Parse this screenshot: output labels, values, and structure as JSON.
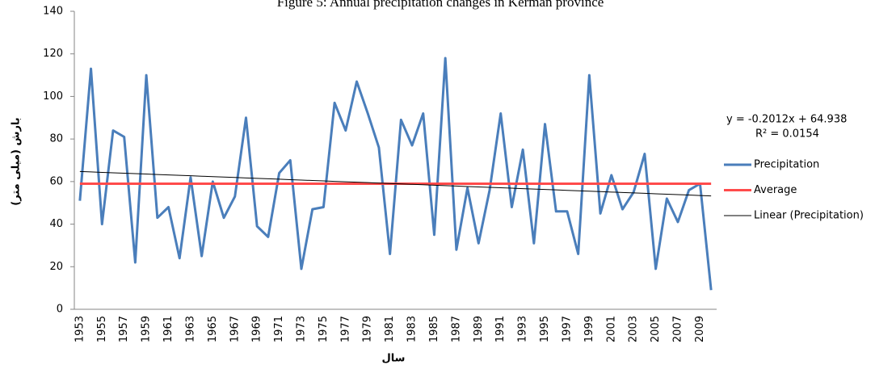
{
  "chart_data": {
    "type": "line",
    "title": "Figure 5: Annual precipitation changes in Kerman province",
    "x_label": "سال",
    "y_label": "بارش (میلی متر)",
    "annotations": [
      "y = -0.2012x + 64.938",
      "R² = 0.0154"
    ],
    "categories": [
      "1953",
      null,
      "1955",
      null,
      "1957",
      null,
      "1959",
      null,
      "1961",
      null,
      "1963",
      null,
      "1965",
      null,
      "1967",
      null,
      "1969",
      null,
      "1971",
      null,
      "1973",
      null,
      "1975",
      null,
      "1977",
      null,
      "1979",
      null,
      "1981",
      null,
      "1983",
      null,
      "1985",
      null,
      "1987",
      null,
      "1989",
      null,
      "1991",
      null,
      "1993",
      null,
      "1995",
      null,
      "1997",
      null,
      "1999",
      null,
      "2001",
      null,
      "2003",
      null,
      "2005",
      null,
      "2007",
      null,
      "2009",
      null
    ],
    "series": [
      {
        "name": "Precipitation",
        "color": "#4a7ebb",
        "values": [
          51,
          113,
          40,
          84,
          81,
          22,
          110,
          43,
          48,
          24,
          62,
          25,
          60,
          43,
          53,
          90,
          39,
          34,
          64,
          70,
          19,
          47,
          48,
          97,
          84,
          107,
          92,
          76,
          26,
          89,
          77,
          92,
          35,
          118,
          28,
          57,
          31,
          56,
          92,
          48,
          75,
          31,
          87,
          46,
          46,
          26,
          110,
          45,
          63,
          47,
          55,
          73,
          19,
          52,
          41,
          56,
          59,
          9
        ]
      },
      {
        "name": "Average",
        "color": "#ff4b4b",
        "values": [
          59,
          59,
          59,
          59,
          59,
          59,
          59,
          59,
          59,
          59,
          59,
          59,
          59,
          59,
          59,
          59,
          59,
          59,
          59,
          59,
          59,
          59,
          59,
          59,
          59,
          59,
          59,
          59,
          59,
          59,
          59,
          59,
          59,
          59,
          59,
          59,
          59,
          59,
          59,
          59,
          59,
          59,
          59,
          59,
          59,
          59,
          59,
          59,
          59,
          59,
          59,
          59,
          59,
          59,
          59,
          59,
          59,
          59
        ]
      },
      {
        "name": "Linear (Precipitation)",
        "color": "#000000",
        "values": [
          64.74,
          64.53,
          64.33,
          64.13,
          63.93,
          63.73,
          63.53,
          63.33,
          63.13,
          62.93,
          62.73,
          62.52,
          62.32,
          62.12,
          61.92,
          61.72,
          61.52,
          61.32,
          61.12,
          60.91,
          60.71,
          60.51,
          60.31,
          60.11,
          59.91,
          59.71,
          59.51,
          59.3,
          59.1,
          58.9,
          58.7,
          58.5,
          58.3,
          58.1,
          57.9,
          57.69,
          57.49,
          57.29,
          57.09,
          56.89,
          56.69,
          56.49,
          56.29,
          56.09,
          55.88,
          55.68,
          55.48,
          55.28,
          55.08,
          54.88,
          54.68,
          54.48,
          54.27,
          54.07,
          53.87,
          53.67,
          53.47,
          53.27
        ]
      }
    ],
    "ylim": [
      0,
      140
    ],
    "yticks": [
      0,
      20,
      40,
      60,
      80,
      100,
      120,
      140
    ],
    "grid": false
  }
}
